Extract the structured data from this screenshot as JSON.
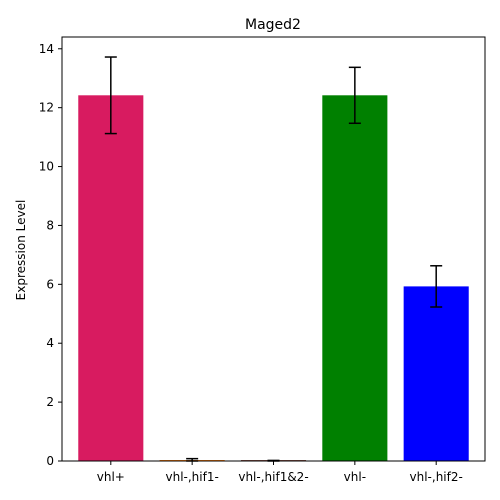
{
  "chart_data": {
    "type": "bar",
    "title": "Maged2",
    "xlabel": "",
    "ylabel": "Expression Level",
    "categories": [
      "vhl+",
      "vhl-,hif1-",
      "vhl-,hif1&2-",
      "vhl-",
      "vhl-,hif2-"
    ],
    "values": [
      12.42,
      0.03,
      0.01,
      12.42,
      5.93
    ],
    "errors": [
      1.3,
      0.05,
      0.01,
      0.95,
      0.7
    ],
    "colors": [
      "#d81b60",
      "#ff7f0e",
      "#8c564b",
      "#008000",
      "#0000ff"
    ],
    "ylim": [
      0,
      14.4
    ],
    "yticks": [
      0,
      2,
      4,
      6,
      8,
      10,
      12,
      14
    ],
    "grid": false,
    "legend": "none"
  }
}
